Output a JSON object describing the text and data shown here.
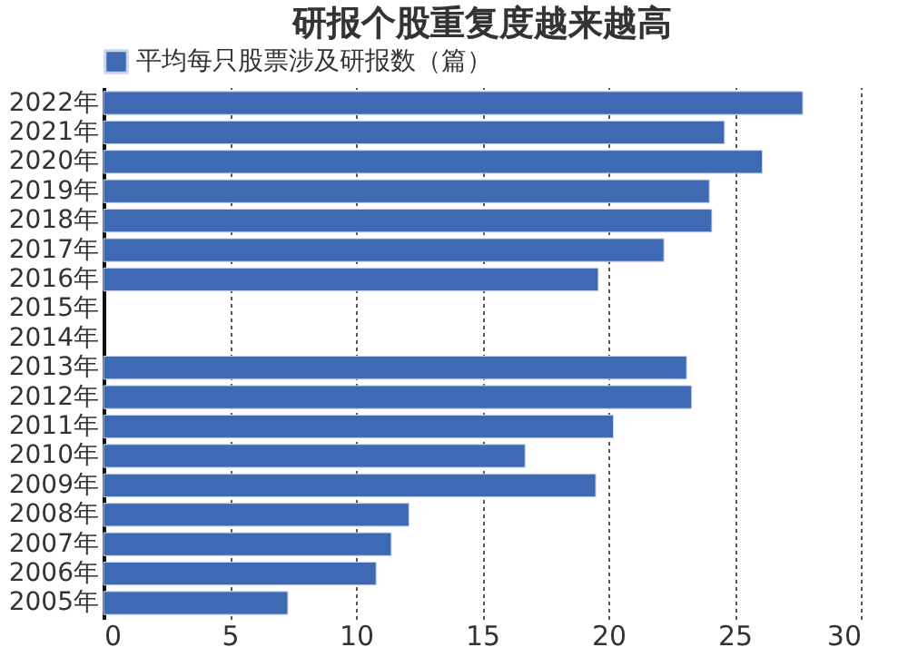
{
  "chart_data": {
    "type": "bar",
    "orientation": "horizontal",
    "title": "研报个股重复度越来越高",
    "categories": [
      "2022年",
      "2021年",
      "2020年",
      "2019年",
      "2018年",
      "2017年",
      "2016年",
      "2015年",
      "2014年",
      "2013年",
      "2012年",
      "2011年",
      "2010年",
      "2009年",
      "2008年",
      "2007年",
      "2006年",
      "2005年"
    ],
    "series": [
      {
        "name": "平均每只股票涉及研报数（篇）",
        "color": "#3d6ab3",
        "values": [
          27.7,
          24.6,
          26.1,
          24.0,
          24.1,
          22.2,
          19.6,
          null,
          null,
          23.1,
          23.3,
          20.2,
          16.7,
          19.5,
          12.1,
          11.4,
          10.8,
          7.3
        ]
      }
    ],
    "xlim": [
      0,
      30
    ],
    "xticks": [
      0,
      5,
      10,
      15,
      20,
      25,
      30
    ],
    "grid": "x",
    "legend": "top"
  }
}
